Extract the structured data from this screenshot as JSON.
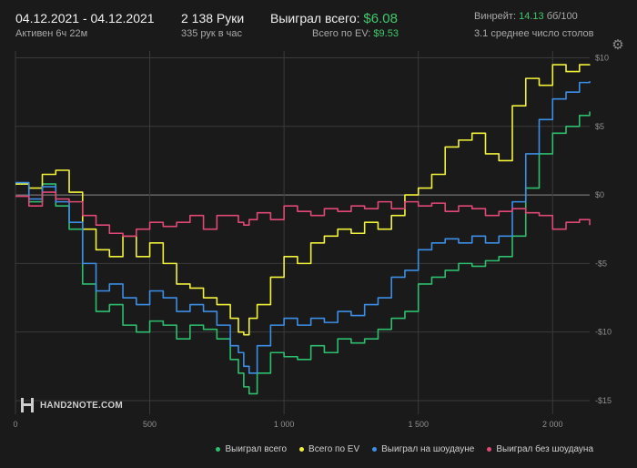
{
  "header": {
    "date_range": "04.12.2021 - 04.12.2021",
    "active": "Активен 6ч 22м",
    "hands": "2 138 Руки",
    "hands_per_hour": "335 рук в час",
    "won_total_label": "Выиграл всего:",
    "won_total_value": "$6.08",
    "ev_total_label": "Всего по EV:",
    "ev_total_value": "$9.53",
    "winrate_label": "Винрейт:",
    "winrate_value": "14.13",
    "winrate_unit": "бб/100",
    "avg_tables": "3.1 среднее число столов"
  },
  "logo_text": "HAND2NOTE.COM",
  "colors": {
    "background": "#1a1a1a",
    "grid": "#3a3a3a",
    "zero_line": "#8a8a8a",
    "won": "#2dbf6e",
    "ev": "#f2f23a",
    "showdown": "#3d8ee6",
    "non_showdown": "#e04875"
  },
  "icons": {
    "settings": "gear-icon"
  },
  "chart_data": {
    "type": "line",
    "xlabel": "",
    "ylabel": "",
    "xlim": [
      0,
      2138
    ],
    "ylim": [
      -16,
      10.5
    ],
    "x_ticks": [
      0,
      500,
      1000,
      1500,
      2000
    ],
    "x_tick_labels": [
      "0",
      "500",
      "1 000",
      "1 500",
      "2 000"
    ],
    "y_ticks": [
      10,
      5,
      0,
      -5,
      -10,
      -15
    ],
    "y_tick_labels": [
      "$10",
      "$5",
      "$0",
      "-$5",
      "-$10",
      "-$15"
    ],
    "grid": true,
    "legend_position": "bottom-right",
    "series": [
      {
        "name": "Выиграл всего",
        "color": "#2dbf6e",
        "x": [
          0,
          50,
          100,
          150,
          200,
          250,
          300,
          350,
          400,
          450,
          500,
          550,
          600,
          650,
          700,
          750,
          800,
          830,
          850,
          870,
          900,
          950,
          1000,
          1050,
          1100,
          1150,
          1200,
          1250,
          1300,
          1350,
          1400,
          1450,
          1500,
          1550,
          1600,
          1650,
          1700,
          1750,
          1800,
          1850,
          1900,
          1950,
          2000,
          2050,
          2100,
          2138
        ],
        "values": [
          0.8,
          -0.5,
          0.8,
          -0.8,
          -2.5,
          -6.5,
          -8.5,
          -8.0,
          -9.5,
          -10.0,
          -9.2,
          -9.5,
          -10.5,
          -9.5,
          -9.8,
          -10.5,
          -12.0,
          -13.0,
          -14.0,
          -14.5,
          -13.0,
          -11.5,
          -11.8,
          -12.0,
          -11.0,
          -11.5,
          -10.5,
          -10.8,
          -10.5,
          -9.8,
          -9.0,
          -8.5,
          -6.5,
          -6.0,
          -5.5,
          -5.0,
          -5.2,
          -4.8,
          -4.5,
          -3.0,
          0.5,
          3.0,
          4.5,
          5.0,
          5.8,
          6.08
        ]
      },
      {
        "name": "Всего по EV",
        "color": "#f2f23a",
        "x": [
          0,
          50,
          100,
          150,
          200,
          250,
          300,
          350,
          400,
          450,
          500,
          550,
          600,
          650,
          700,
          750,
          800,
          830,
          850,
          870,
          900,
          950,
          1000,
          1050,
          1100,
          1150,
          1200,
          1250,
          1300,
          1350,
          1400,
          1450,
          1500,
          1550,
          1600,
          1650,
          1700,
          1750,
          1800,
          1850,
          1900,
          1950,
          2000,
          2050,
          2100,
          2138
        ],
        "values": [
          0.8,
          0.5,
          1.5,
          1.8,
          0.2,
          -2.5,
          -4.0,
          -4.5,
          -3.0,
          -4.5,
          -3.5,
          -5.0,
          -6.5,
          -6.8,
          -7.5,
          -8.0,
          -9.0,
          -10.0,
          -10.2,
          -9.0,
          -8.0,
          -6.0,
          -4.5,
          -5.0,
          -3.5,
          -3.0,
          -2.5,
          -2.8,
          -2.0,
          -2.5,
          -1.5,
          0.0,
          0.5,
          1.5,
          3.5,
          4.0,
          4.5,
          3.0,
          2.5,
          6.5,
          8.5,
          8.0,
          9.5,
          9.0,
          9.5,
          9.53
        ]
      },
      {
        "name": "Выиграл на шоудауне",
        "color": "#3d8ee6",
        "x": [
          0,
          50,
          100,
          150,
          200,
          250,
          300,
          350,
          400,
          450,
          500,
          550,
          600,
          650,
          700,
          750,
          800,
          830,
          850,
          870,
          900,
          950,
          1000,
          1050,
          1100,
          1150,
          1200,
          1250,
          1300,
          1350,
          1400,
          1450,
          1500,
          1550,
          1600,
          1650,
          1700,
          1750,
          1800,
          1850,
          1900,
          1950,
          2000,
          2050,
          2100,
          2138
        ],
        "values": [
          0.9,
          -0.3,
          0.6,
          -0.5,
          -2.0,
          -5.0,
          -7.0,
          -6.5,
          -7.5,
          -8.0,
          -7.0,
          -7.5,
          -8.5,
          -8.0,
          -8.5,
          -9.5,
          -11.0,
          -11.5,
          -12.5,
          -13.0,
          -11.0,
          -9.5,
          -9.0,
          -9.5,
          -9.0,
          -9.3,
          -8.5,
          -8.8,
          -8.0,
          -7.5,
          -6.0,
          -5.5,
          -4.0,
          -3.5,
          -3.2,
          -3.5,
          -3.0,
          -3.5,
          -3.0,
          -0.5,
          3.0,
          5.5,
          7.0,
          7.5,
          8.2,
          8.3
        ]
      },
      {
        "name": "Выиграл без шоудауна",
        "color": "#e04875",
        "x": [
          0,
          50,
          100,
          150,
          200,
          250,
          300,
          350,
          400,
          450,
          500,
          550,
          600,
          650,
          700,
          750,
          800,
          830,
          850,
          870,
          900,
          950,
          1000,
          1050,
          1100,
          1150,
          1200,
          1250,
          1300,
          1350,
          1400,
          1450,
          1500,
          1550,
          1600,
          1650,
          1700,
          1750,
          1800,
          1850,
          1900,
          1950,
          2000,
          2050,
          2100,
          2138
        ],
        "values": [
          -0.1,
          -0.8,
          0.2,
          -0.3,
          -0.5,
          -1.5,
          -2.2,
          -2.8,
          -3.0,
          -2.5,
          -2.0,
          -2.3,
          -2.0,
          -1.5,
          -2.5,
          -1.5,
          -1.5,
          -2.0,
          -2.2,
          -1.8,
          -1.3,
          -1.8,
          -0.8,
          -1.2,
          -1.5,
          -1.0,
          -1.2,
          -0.8,
          -1.0,
          -0.5,
          -1.0,
          -0.5,
          -0.8,
          -0.6,
          -1.2,
          -0.8,
          -1.0,
          -1.5,
          -1.2,
          -1.0,
          -1.3,
          -1.5,
          -2.5,
          -2.0,
          -1.8,
          -2.2
        ]
      }
    ]
  }
}
